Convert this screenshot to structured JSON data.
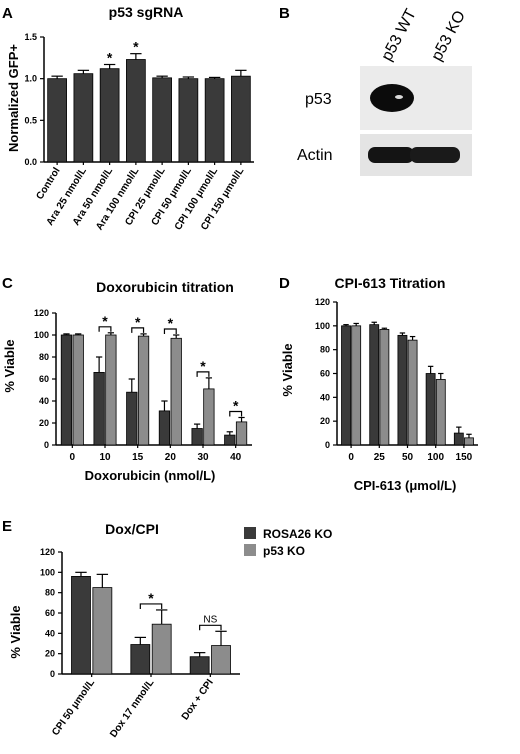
{
  "panels": {
    "A": "A",
    "B": "B",
    "C": "C",
    "D": "D",
    "E": "E"
  },
  "colors": {
    "dark": "#3a3a3a",
    "light": "#8c8c8c",
    "axis": "#000000"
  },
  "chart_data": [
    {
      "id": "A",
      "type": "bar",
      "title": "p53 sgRNA",
      "ylabel": "Normalized GFP+",
      "xlabel": "",
      "ylim": [
        0,
        1.5
      ],
      "yticks": [
        0,
        0.5,
        1.0,
        1.5
      ],
      "ytick_labels": [
        "0.0",
        "0.5",
        "1.0",
        "1.5"
      ],
      "categories": [
        "Control",
        "Ara 25 nmol/L",
        "Ara 50 nmol/L",
        "Ara 100 nmol/L",
        "CPI 25 μmol/L",
        "CPI 50 μmol/L",
        "CPI 100 μmol/L",
        "CPI 150 μmol/L"
      ],
      "values": [
        1.0,
        1.06,
        1.12,
        1.23,
        1.01,
        1.0,
        1.0,
        1.03
      ],
      "errors": [
        0.03,
        0.04,
        0.05,
        0.07,
        0.02,
        0.02,
        0.015,
        0.07
      ],
      "significance": [
        "",
        "",
        "*",
        "*",
        "",
        "",
        "",
        ""
      ]
    },
    {
      "id": "C",
      "type": "bar",
      "title": "Doxorubicin titration",
      "xlabel": "Doxorubicin (nmol/L)",
      "ylabel": "% Viable",
      "ylim": [
        0,
        120
      ],
      "yticks": [
        0,
        20,
        40,
        60,
        80,
        100,
        120
      ],
      "categories": [
        "0",
        "10",
        "15",
        "20",
        "30",
        "40"
      ],
      "series": [
        {
          "values": [
            100,
            66,
            48,
            31,
            15,
            9
          ],
          "errors": [
            1,
            14,
            12,
            9,
            4,
            3
          ]
        },
        {
          "values": [
            100,
            100,
            99,
            97,
            51,
            21
          ],
          "errors": [
            1,
            2,
            2,
            3,
            10,
            4
          ]
        }
      ],
      "significance": [
        "",
        "*",
        "*",
        "*",
        "*",
        "*"
      ]
    },
    {
      "id": "D",
      "type": "bar",
      "title": "CPI-613 Titration",
      "xlabel": "CPI-613 (μmol/L)",
      "ylabel": "% Viable",
      "ylim": [
        0,
        120
      ],
      "yticks": [
        0,
        20,
        40,
        60,
        80,
        100,
        120
      ],
      "categories": [
        "0",
        "25",
        "50",
        "100",
        "150"
      ],
      "series": [
        {
          "values": [
            100,
            101,
            92,
            60,
            10
          ],
          "errors": [
            1,
            2,
            2,
            6,
            5
          ]
        },
        {
          "values": [
            100,
            97,
            88,
            55,
            6
          ],
          "errors": [
            2,
            1,
            3,
            5,
            3
          ]
        }
      ]
    },
    {
      "id": "E",
      "type": "bar",
      "title": "Dox/CPI",
      "xlabel": "",
      "ylabel": "% Viable",
      "ylim": [
        0,
        120
      ],
      "yticks": [
        0,
        20,
        40,
        60,
        80,
        100,
        120
      ],
      "categories": [
        "CPI 50 μmol/L",
        "Dox 17 nmol/L",
        "Dox + CPI"
      ],
      "series": [
        {
          "name": "ROSA26 KO",
          "values": [
            96,
            29,
            17
          ],
          "errors": [
            4,
            7,
            4
          ]
        },
        {
          "name": "p53 KO",
          "values": [
            85,
            49,
            28
          ],
          "errors": [
            13,
            14,
            14
          ]
        }
      ],
      "significance": [
        "",
        "*",
        "NS"
      ],
      "legend": "top-right"
    }
  ],
  "blot": {
    "lanes": [
      "p53 WT",
      "p53 KO"
    ],
    "rows": [
      "p53",
      "Actin"
    ]
  }
}
